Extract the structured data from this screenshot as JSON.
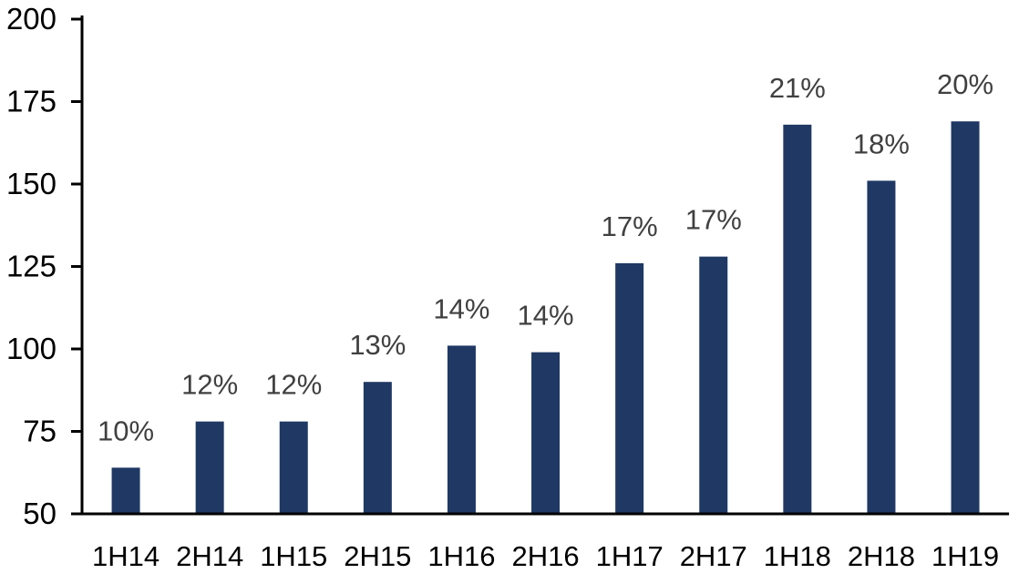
{
  "chart_data": {
    "type": "bar",
    "title": "",
    "xlabel": "",
    "ylabel": "",
    "categories": [
      "1H14",
      "2H14",
      "1H15",
      "2H15",
      "1H16",
      "2H16",
      "1H17",
      "2H17",
      "1H18",
      "2H18",
      "1H19"
    ],
    "values": [
      64,
      78,
      78,
      90,
      101,
      99,
      126,
      128,
      168,
      151,
      169
    ],
    "bar_labels": [
      "10%",
      "12%",
      "12%",
      "13%",
      "14%",
      "14%",
      "17%",
      "17%",
      "21%",
      "18%",
      "20%"
    ],
    "ylim": [
      50,
      200
    ],
    "yticks": [
      50,
      75,
      100,
      125,
      150,
      175,
      200
    ],
    "grid": false,
    "legend": "none",
    "bar_color": "#1F3864",
    "data_label_color": "#404040",
    "axis_label_color": "#000000",
    "axis_line_color": "#000000"
  }
}
